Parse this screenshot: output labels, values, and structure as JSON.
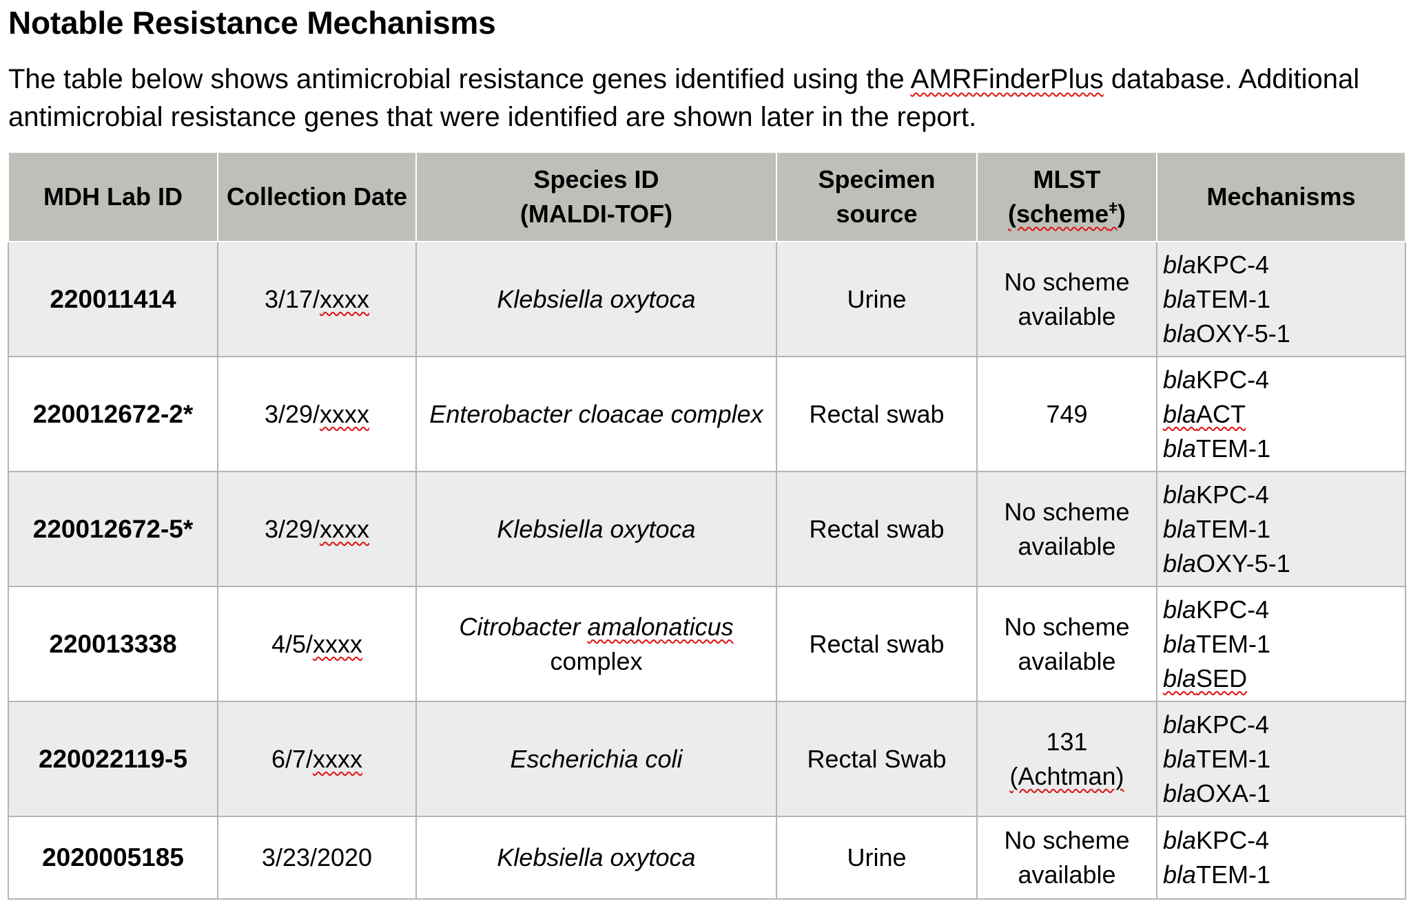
{
  "title": "Notable Resistance Mechanisms",
  "intro": {
    "before_link": "The table below shows antimicrobial resistance genes identified using the ",
    "link": "AMRFinderPlus",
    "after_link": " database. Additional antimicrobial resistance genes that were identified are shown later in the report."
  },
  "table": {
    "headers": {
      "lab_id": "MDH Lab ID",
      "date": "Collection Date",
      "species_line1": "Species ID",
      "species_line2": "(MALDI-TOF)",
      "source_line1": "Specimen",
      "source_line2": "source",
      "mlst_line1": "MLST",
      "mlst_scheme": "(scheme",
      "mlst_sup": "ǂ",
      "mlst_close": ")",
      "mechanisms": "Mechanisms"
    },
    "rows": [
      {
        "lab_id": "220011414",
        "date_prefix": "3/17/",
        "date_suffix": "xxxx",
        "species_1": "Klebsiella oxytoca",
        "species_2": "",
        "source": "Urine",
        "mlst_1": "No scheme",
        "mlst_2": "available",
        "genes": [
          {
            "prefix": "bla",
            "name": "KPC-4"
          },
          {
            "prefix": "bla",
            "name": "TEM-1"
          },
          {
            "prefix": "bla",
            "name": "OXY-5-1"
          }
        ]
      },
      {
        "lab_id": "220012672-2*",
        "date_prefix": "3/29/",
        "date_suffix": "xxxx",
        "species_1": "Enterobacter cloacae complex",
        "species_2": "",
        "source": "Rectal swab",
        "mlst_1": "749",
        "mlst_2": "",
        "genes": [
          {
            "prefix": "bla",
            "name": "KPC-4"
          },
          {
            "prefix": "bla",
            "name": "ACT"
          },
          {
            "prefix": "bla",
            "name": "TEM-1"
          }
        ]
      },
      {
        "lab_id": "220012672-5*",
        "date_prefix": "3/29/",
        "date_suffix": "xxxx",
        "species_1": "Klebsiella oxytoca",
        "species_2": "",
        "source": "Rectal swab",
        "mlst_1": "No scheme",
        "mlst_2": "available",
        "genes": [
          {
            "prefix": "bla",
            "name": "KPC-4"
          },
          {
            "prefix": "bla",
            "name": "TEM-1"
          },
          {
            "prefix": "bla",
            "name": "OXY-5-1"
          }
        ]
      },
      {
        "lab_id": "220013338",
        "date_prefix": "4/5/",
        "date_suffix": "xxxx",
        "species_1": "Citrobacter amalonaticus",
        "species_2": "complex",
        "source": "Rectal swab",
        "mlst_1": "No scheme",
        "mlst_2": "available",
        "genes": [
          {
            "prefix": "bla",
            "name": "KPC-4"
          },
          {
            "prefix": "bla",
            "name": "TEM-1"
          },
          {
            "prefix": "bla",
            "name": "SED"
          }
        ]
      },
      {
        "lab_id": "220022119-5",
        "date_prefix": "6/7/",
        "date_suffix": "xxxx",
        "species_1": "Escherichia coli",
        "species_2": "",
        "source": "Rectal Swab",
        "mlst_1": "131",
        "mlst_2": "(Achtman)",
        "genes": [
          {
            "prefix": "bla",
            "name": "KPC-4"
          },
          {
            "prefix": "bla",
            "name": "TEM-1"
          },
          {
            "prefix": "bla",
            "name": "OXA-1"
          }
        ]
      },
      {
        "lab_id": "2020005185",
        "date_prefix": "3/23/2020",
        "date_suffix": "",
        "species_1": "Klebsiella oxytoca",
        "species_2": "",
        "source": "Urine",
        "mlst_1": "No scheme",
        "mlst_2": "available",
        "genes": [
          {
            "prefix": "bla",
            "name": "KPC-4"
          },
          {
            "prefix": "bla",
            "name": "TEM-1"
          },
          {
            "prefix": "",
            "name": ""
          }
        ]
      }
    ]
  }
}
